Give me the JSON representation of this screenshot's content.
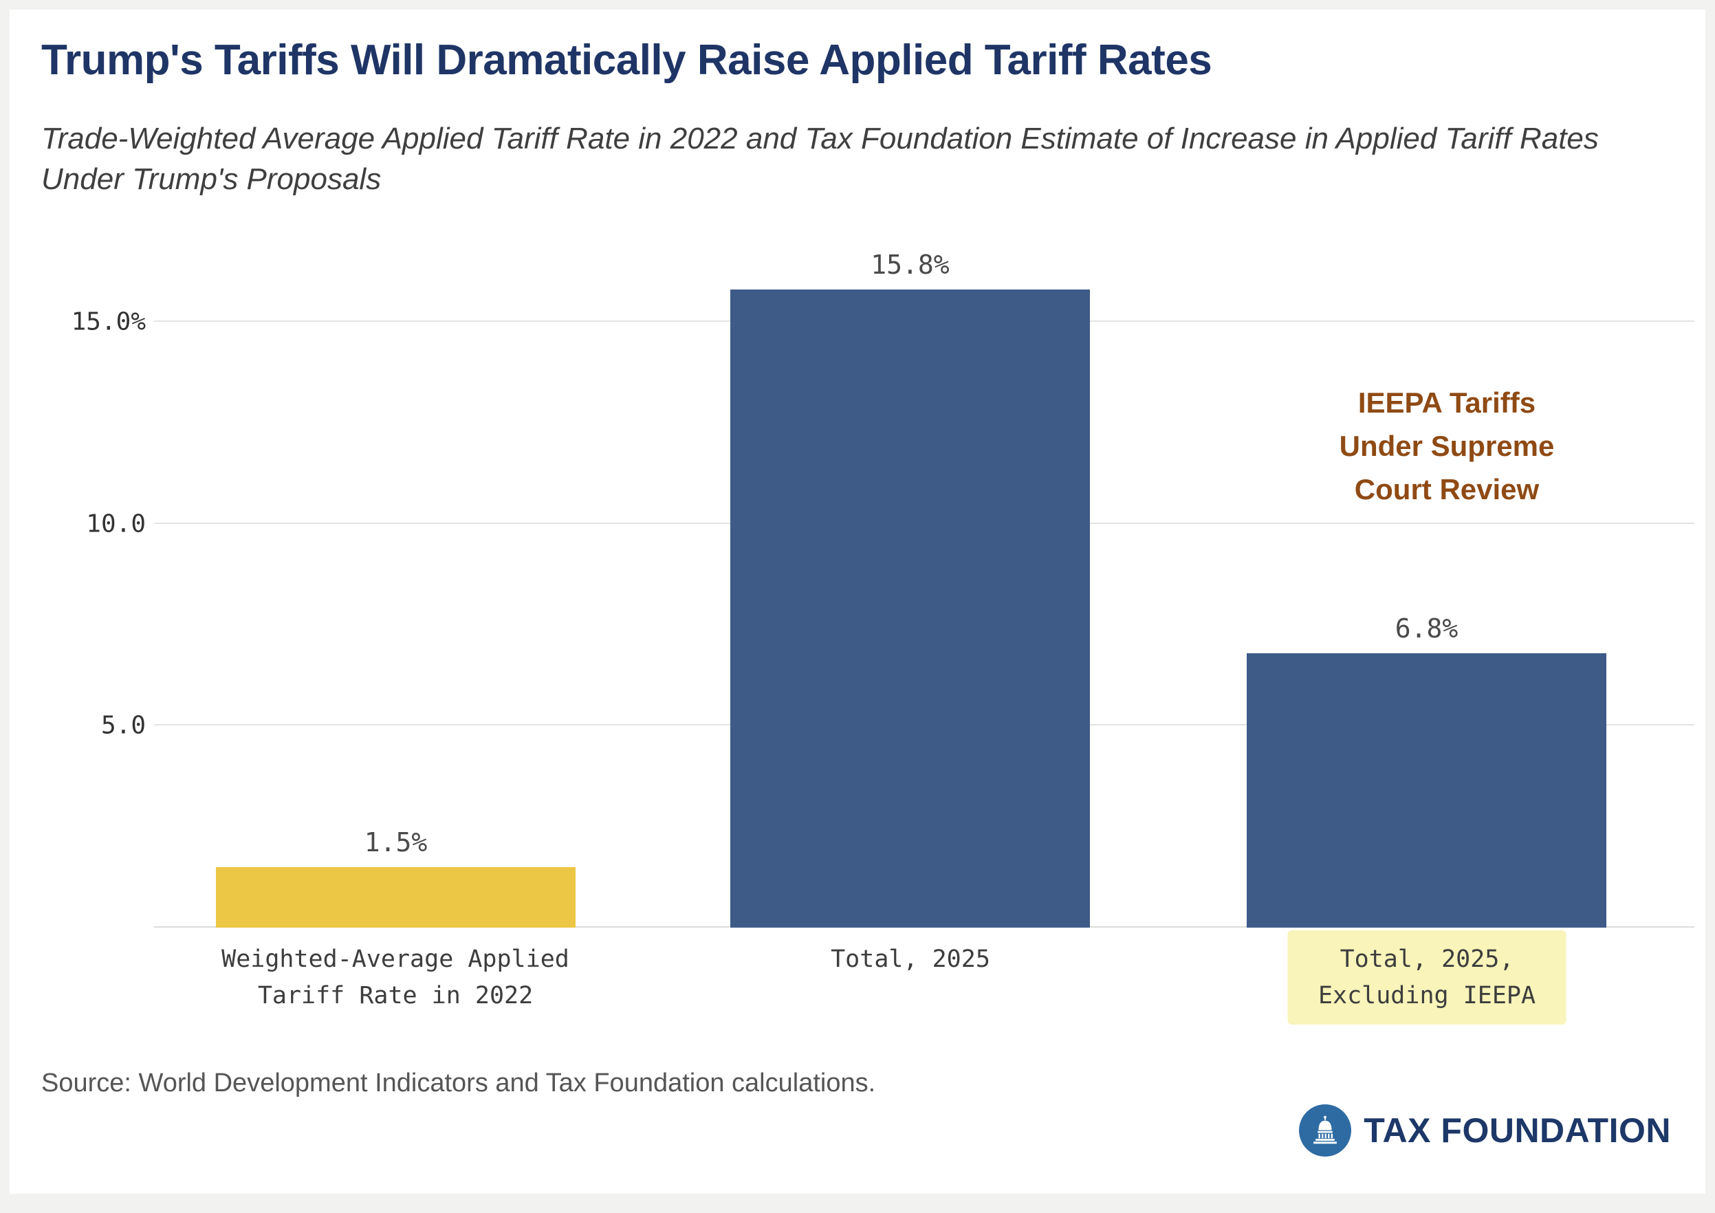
{
  "header": {
    "title": "Trump's Tariffs Will Dramatically Raise Applied Tariff Rates",
    "subtitle": "Trade-Weighted Average Applied Tariff Rate in 2022 and Tax Foundation Estimate of Increase in Applied Tariff Rates Under Trump's Proposals"
  },
  "chart_data": {
    "type": "bar",
    "title": "Trump's Tariffs Will Dramatically Raise Applied Tariff Rates",
    "categories": [
      "Weighted-Average Applied Tariff Rate in 2022",
      "Total, 2025",
      "Total, 2025, Excluding IEEPA"
    ],
    "values": [
      1.5,
      15.8,
      6.8
    ],
    "value_labels": [
      "1.5%",
      "15.8%",
      "6.8%"
    ],
    "bar_colors": [
      "#ecc645",
      "#3e5b88",
      "#3e5b88"
    ],
    "xlabel": "",
    "ylabel": "",
    "ylim": [
      0,
      16.5
    ],
    "yticks": [
      {
        "value": 15,
        "label": "15.0%"
      },
      {
        "value": 10,
        "label": "10.0"
      },
      {
        "value": 5,
        "label": "5.0"
      }
    ],
    "grid": true,
    "legend": "none",
    "highlighted_category_index": 2,
    "highlight_color": "#f8f4ba",
    "annotation_text": "IEEPA Tariffs Under Supreme Court Review"
  },
  "annotation": {
    "lines": [
      "IEEPA Tariffs",
      "Under Supreme",
      "Court Review"
    ],
    "color": "#8f4a14"
  },
  "footer": {
    "source": "Source: World Development Indicators and Tax Foundation calculations.",
    "logo_text": "TAX FOUNDATION"
  }
}
